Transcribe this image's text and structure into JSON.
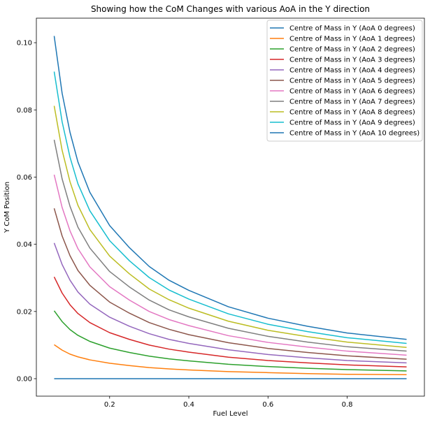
{
  "chart_data": {
    "type": "line",
    "title": "Showing how the CoM Changes with various AoA in the Y direction",
    "xlabel": "Fuel Level",
    "ylabel": "Y CoM Position",
    "xlim": [
      0.015,
      0.995
    ],
    "ylim": [
      -0.0052,
      0.1073
    ],
    "xticks": [
      0.2,
      0.4,
      0.6,
      0.8
    ],
    "xtick_labels": [
      "0.2",
      "0.4",
      "0.6",
      "0.8"
    ],
    "yticks": [
      0.0,
      0.02,
      0.04,
      0.06,
      0.08,
      0.1
    ],
    "ytick_labels": [
      "0.00",
      "0.02",
      "0.04",
      "0.06",
      "0.08",
      "0.10"
    ],
    "grid": false,
    "legend_position": "top-right",
    "x": [
      0.06,
      0.08,
      0.1,
      0.12,
      0.15,
      0.2,
      0.25,
      0.3,
      0.35,
      0.4,
      0.5,
      0.6,
      0.7,
      0.8,
      0.95
    ],
    "series": [
      {
        "name": "Centre of Mass in Y (AoA 0 degrees)",
        "color": "#1f77b4",
        "values": [
          0.0,
          0.0,
          0.0,
          0.0,
          0.0,
          0.0,
          0.0,
          0.0,
          0.0,
          0.0,
          0.0,
          0.0,
          0.0,
          0.0,
          0.0
        ]
      },
      {
        "name": "Centre of Mass in Y (AoA 1 degrees)",
        "color": "#ff7f0e",
        "values": [
          0.0101,
          0.0085,
          0.0073,
          0.0065,
          0.0056,
          0.0046,
          0.0039,
          0.0033,
          0.0029,
          0.0026,
          0.0021,
          0.0018,
          0.0015,
          0.0013,
          0.0012
        ]
      },
      {
        "name": "Centre of Mass in Y (AoA 2 degrees)",
        "color": "#2ca02c",
        "values": [
          0.0202,
          0.017,
          0.0146,
          0.0129,
          0.0111,
          0.0091,
          0.0078,
          0.0067,
          0.0059,
          0.0053,
          0.0043,
          0.0036,
          0.0031,
          0.0027,
          0.0023
        ]
      },
      {
        "name": "Centre of Mass in Y (AoA 3 degrees)",
        "color": "#d62728",
        "values": [
          0.0303,
          0.0255,
          0.022,
          0.0194,
          0.0167,
          0.0137,
          0.0117,
          0.01,
          0.0088,
          0.0079,
          0.0064,
          0.0054,
          0.0047,
          0.0041,
          0.0035
        ]
      },
      {
        "name": "Centre of Mass in Y (AoA 4 degrees)",
        "color": "#9467bd",
        "values": [
          0.0404,
          0.034,
          0.0293,
          0.0258,
          0.0222,
          0.0183,
          0.0156,
          0.0134,
          0.0117,
          0.0105,
          0.0086,
          0.0072,
          0.0062,
          0.0054,
          0.0047
        ]
      },
      {
        "name": "Centre of Mass in Y (AoA 5 degrees)",
        "color": "#8c564b",
        "values": [
          0.0507,
          0.0425,
          0.0366,
          0.0322,
          0.0278,
          0.0228,
          0.0195,
          0.0167,
          0.0147,
          0.0131,
          0.0107,
          0.009,
          0.0078,
          0.0068,
          0.0058
        ]
      },
      {
        "name": "Centre of Mass in Y (AoA 6 degrees)",
        "color": "#e377c2",
        "values": [
          0.0607,
          0.051,
          0.044,
          0.0387,
          0.0333,
          0.0274,
          0.0234,
          0.02,
          0.0176,
          0.0158,
          0.0128,
          0.0108,
          0.0094,
          0.0082,
          0.007
        ]
      },
      {
        "name": "Centre of Mass in Y (AoA 7 degrees)",
        "color": "#7f7f7f",
        "values": [
          0.0711,
          0.0595,
          0.0513,
          0.0451,
          0.0389,
          0.0319,
          0.0273,
          0.0234,
          0.0205,
          0.0184,
          0.015,
          0.0126,
          0.0109,
          0.0095,
          0.0082
        ]
      },
      {
        "name": "Centre of Mass in Y (AoA 8 degrees)",
        "color": "#bcbd22",
        "values": [
          0.0812,
          0.068,
          0.0586,
          0.0516,
          0.0444,
          0.0365,
          0.0312,
          0.0267,
          0.0235,
          0.021,
          0.0171,
          0.0144,
          0.0125,
          0.0109,
          0.0093
        ]
      },
      {
        "name": "Centre of Mass in Y (AoA 9 degrees)",
        "color": "#17becf",
        "values": [
          0.0914,
          0.0765,
          0.0659,
          0.058,
          0.05,
          0.0411,
          0.0351,
          0.0301,
          0.0264,
          0.0237,
          0.0193,
          0.0162,
          0.014,
          0.0122,
          0.0105
        ]
      },
      {
        "name": "Centre of Mass in Y (AoA 10 degrees)",
        "color": "#1f77b4",
        "values": [
          0.102,
          0.085,
          0.0733,
          0.0645,
          0.0555,
          0.0456,
          0.039,
          0.0334,
          0.0293,
          0.0263,
          0.0214,
          0.018,
          0.0156,
          0.0136,
          0.0117
        ]
      }
    ]
  }
}
